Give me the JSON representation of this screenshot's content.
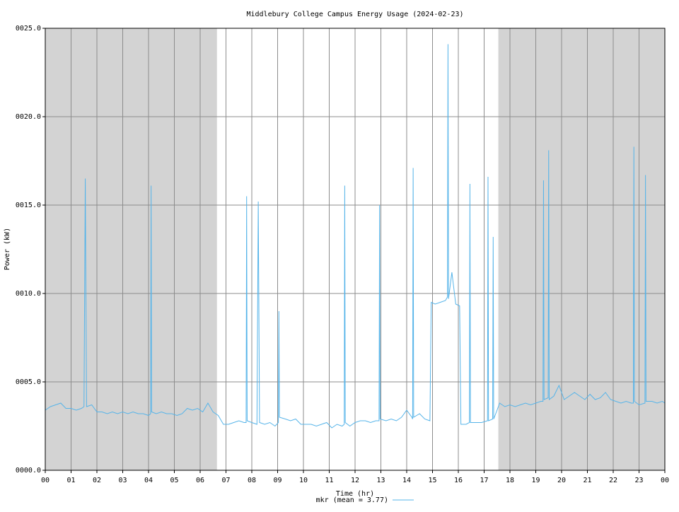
{
  "chart_data": {
    "type": "line",
    "title": "Middlebury College Campus Energy Usage (2024-02-23)",
    "x_label": "Time (hr)",
    "y_label": "Power (kW)",
    "xlim": [
      0,
      24
    ],
    "ylim": [
      0,
      25
    ],
    "xticks": [
      {
        "value": 0,
        "label": "00"
      },
      {
        "value": 1,
        "label": "01"
      },
      {
        "value": 2,
        "label": "02"
      },
      {
        "value": 3,
        "label": "03"
      },
      {
        "value": 4,
        "label": "04"
      },
      {
        "value": 5,
        "label": "05"
      },
      {
        "value": 6,
        "label": "06"
      },
      {
        "value": 7,
        "label": "07"
      },
      {
        "value": 8,
        "label": "08"
      },
      {
        "value": 9,
        "label": "09"
      },
      10,
      11,
      12,
      13,
      14,
      15,
      16,
      17,
      18,
      19,
      20,
      21,
      22,
      23,
      {
        "value": 24,
        "label": "00"
      }
    ],
    "yticks": [
      {
        "value": 0,
        "label": "0000.0"
      },
      {
        "value": 5,
        "label": "0005.0"
      },
      {
        "value": 10,
        "label": "0010.0"
      },
      {
        "value": 15,
        "label": "0015.0"
      },
      {
        "value": 20,
        "label": "0020.0"
      },
      {
        "value": 25,
        "label": "0025.0"
      }
    ],
    "grid": true,
    "shaded_ranges": [
      [
        0,
        6.65
      ],
      [
        17.55,
        24
      ]
    ],
    "shade_color": "#d3d3d3",
    "x": [
      0,
      0.2,
      0.4,
      0.6,
      0.8,
      1.0,
      1.2,
      1.4,
      1.5,
      1.55,
      1.6,
      1.8,
      2.0,
      2.2,
      2.4,
      2.6,
      2.8,
      3.0,
      3.2,
      3.4,
      3.6,
      3.8,
      4.0,
      4.08,
      4.1,
      4.12,
      4.3,
      4.5,
      4.7,
      4.9,
      5.1,
      5.3,
      5.5,
      5.7,
      5.9,
      6.1,
      6.3,
      6.5,
      6.7,
      6.9,
      7.1,
      7.3,
      7.5,
      7.7,
      7.78,
      7.8,
      7.82,
      8.0,
      8.2,
      8.25,
      8.3,
      8.5,
      8.7,
      8.9,
      9.03,
      9.05,
      9.07,
      9.3,
      9.5,
      9.7,
      9.9,
      10.1,
      10.3,
      10.5,
      10.7,
      10.9,
      11.1,
      11.3,
      11.5,
      11.58,
      11.6,
      11.62,
      11.8,
      12.0,
      12.2,
      12.4,
      12.6,
      12.8,
      12.93,
      12.95,
      12.97,
      13.2,
      13.4,
      13.6,
      13.8,
      14.0,
      14.2,
      14.23,
      14.25,
      14.27,
      14.5,
      14.7,
      14.9,
      14.95,
      15.1,
      15.3,
      15.5,
      15.58,
      15.6,
      15.62,
      15.75,
      15.9,
      16.05,
      16.1,
      16.3,
      16.43,
      16.45,
      16.47,
      16.7,
      16.9,
      17.13,
      17.15,
      17.17,
      17.33,
      17.35,
      17.37,
      17.5,
      17.6,
      17.8,
      18.0,
      18.2,
      18.4,
      18.6,
      18.8,
      19.0,
      19.2,
      19.28,
      19.3,
      19.32,
      19.48,
      19.5,
      19.52,
      19.7,
      19.9,
      20.1,
      20.3,
      20.5,
      20.7,
      20.9,
      21.1,
      21.3,
      21.5,
      21.7,
      21.9,
      22.1,
      22.3,
      22.5,
      22.7,
      22.78,
      22.8,
      22.82,
      23.0,
      23.23,
      23.25,
      23.27,
      23.5,
      23.7,
      23.9,
      24
    ],
    "series": [
      {
        "name": "mkr (mean = 3.77)",
        "color": "#56b4e9",
        "values": [
          3.4,
          3.6,
          3.7,
          3.8,
          3.5,
          3.5,
          3.4,
          3.5,
          3.6,
          16.5,
          3.6,
          3.7,
          3.3,
          3.3,
          3.2,
          3.3,
          3.2,
          3.3,
          3.2,
          3.3,
          3.2,
          3.2,
          3.1,
          3.2,
          16.1,
          3.3,
          3.2,
          3.3,
          3.2,
          3.2,
          3.1,
          3.2,
          3.5,
          3.4,
          3.5,
          3.3,
          3.8,
          3.3,
          3.1,
          2.6,
          2.6,
          2.7,
          2.8,
          2.7,
          2.7,
          15.5,
          2.8,
          2.7,
          2.6,
          15.2,
          2.7,
          2.6,
          2.7,
          2.5,
          2.7,
          9.0,
          3.0,
          2.9,
          2.8,
          2.9,
          2.6,
          2.6,
          2.6,
          2.5,
          2.6,
          2.7,
          2.4,
          2.6,
          2.5,
          2.6,
          16.1,
          2.7,
          2.5,
          2.7,
          2.8,
          2.8,
          2.7,
          2.8,
          2.8,
          15.0,
          2.9,
          2.8,
          2.9,
          2.8,
          3.0,
          3.4,
          3.0,
          2.9,
          17.1,
          3.0,
          3.2,
          2.9,
          2.8,
          9.5,
          9.4,
          9.5,
          9.6,
          9.8,
          24.1,
          9.7,
          11.2,
          9.4,
          9.3,
          2.6,
          2.6,
          2.7,
          16.2,
          2.7,
          2.7,
          2.7,
          2.8,
          16.6,
          2.8,
          2.9,
          13.2,
          2.9,
          3.4,
          3.8,
          3.6,
          3.7,
          3.6,
          3.7,
          3.8,
          3.7,
          3.8,
          3.9,
          3.9,
          16.4,
          4.0,
          4.1,
          18.1,
          4.0,
          4.2,
          4.8,
          4.0,
          4.2,
          4.4,
          4.2,
          4.0,
          4.3,
          4.0,
          4.1,
          4.4,
          4.0,
          3.9,
          3.8,
          3.9,
          3.8,
          3.8,
          18.3,
          3.9,
          3.7,
          3.8,
          16.7,
          3.9,
          3.9,
          3.8,
          3.9,
          3.8
        ]
      }
    ]
  }
}
